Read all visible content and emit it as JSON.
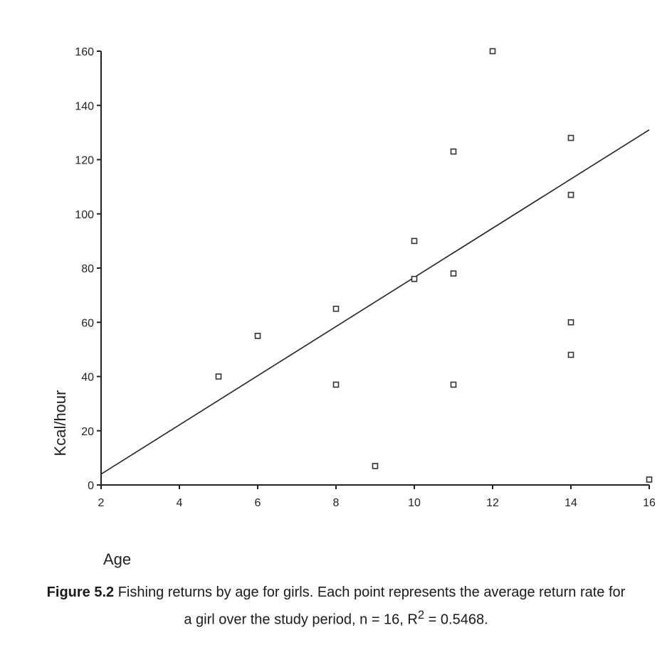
{
  "chart_data": {
    "type": "scatter",
    "xlabel": "Age",
    "ylabel": "Kcal/hour",
    "xlim": [
      2,
      16
    ],
    "ylim": [
      0,
      160
    ],
    "x_ticks": [
      "2",
      "4",
      "6",
      "8",
      "10",
      "12",
      "14",
      "16"
    ],
    "y_ticks": [
      "0",
      "20",
      "40",
      "60",
      "80",
      "100",
      "120",
      "140",
      "160"
    ],
    "grid": false,
    "legend": "none",
    "points": [
      {
        "x": 5,
        "y": 40
      },
      {
        "x": 6,
        "y": 55
      },
      {
        "x": 8,
        "y": 65
      },
      {
        "x": 8,
        "y": 37
      },
      {
        "x": 9,
        "y": 7
      },
      {
        "x": 10,
        "y": 90
      },
      {
        "x": 10,
        "y": 76
      },
      {
        "x": 11,
        "y": 123
      },
      {
        "x": 11,
        "y": 78
      },
      {
        "x": 11,
        "y": 37
      },
      {
        "x": 12,
        "y": 160
      },
      {
        "x": 14,
        "y": 128
      },
      {
        "x": 14,
        "y": 107
      },
      {
        "x": 14,
        "y": 60
      },
      {
        "x": 14,
        "y": 48
      },
      {
        "x": 16,
        "y": 2
      }
    ],
    "trendline": {
      "x": [
        2,
        16
      ],
      "y": [
        4,
        131
      ]
    }
  },
  "caption": {
    "label": "Figure 5.2",
    "text": "Fishing returns by age for girls. Each point represents the average return rate for a girl over the study period, n = 16, R",
    "superscript": "2",
    "text_end": " = 0.5468."
  }
}
